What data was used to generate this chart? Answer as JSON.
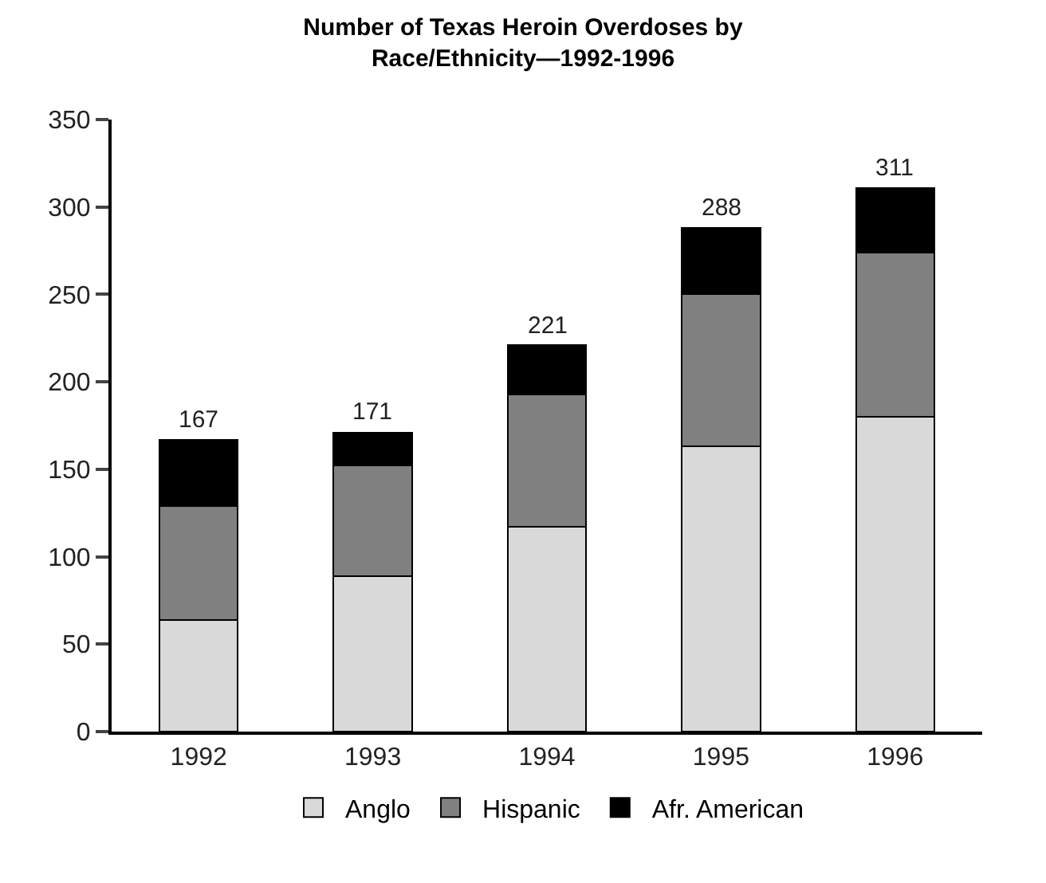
{
  "chart_data": {
    "type": "bar",
    "stacked": true,
    "title": "Number of Texas Heroin Overdoses by\nRace/Ethnicity—1992-1996",
    "categories": [
      "1992",
      "1993",
      "1994",
      "1995",
      "1996"
    ],
    "series": [
      {
        "name": "Anglo",
        "color": "#d9d9d9",
        "values": [
          64,
          89,
          117,
          163,
          180
        ]
      },
      {
        "name": "Hispanic",
        "color": "#808080",
        "values": [
          65,
          63,
          76,
          87,
          94
        ]
      },
      {
        "name": "Afr. American",
        "color": "#000000",
        "values": [
          38,
          19,
          28,
          38,
          37
        ]
      }
    ],
    "totals": [
      "167",
      "171",
      "221",
      "288",
      "311"
    ],
    "ylim": [
      0,
      350
    ],
    "yticks": [
      0,
      50,
      100,
      150,
      200,
      250,
      300,
      350
    ],
    "legend": "bottom"
  }
}
